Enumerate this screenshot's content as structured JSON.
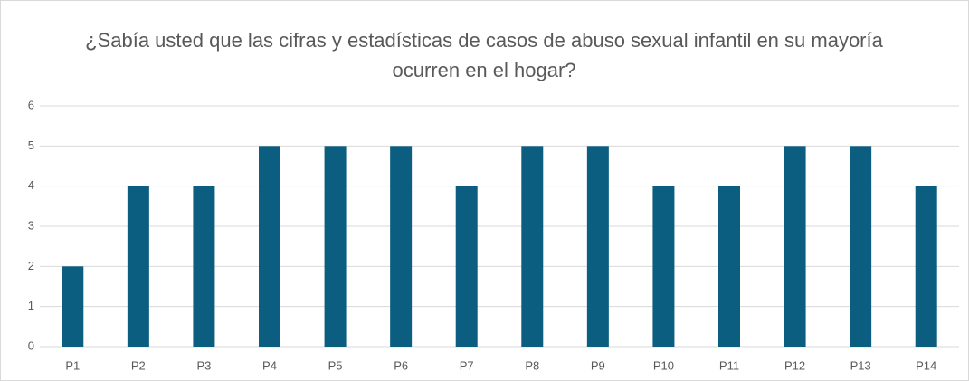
{
  "chart_data": {
    "type": "bar",
    "title": "¿Sabía usted que las cifras y estadísticas de casos de abuso sexual infantil en su mayoría ocurren en el hogar?",
    "categories": [
      "P1",
      "P2",
      "P3",
      "P4",
      "P5",
      "P6",
      "P7",
      "P8",
      "P9",
      "P10",
      "P11",
      "P12",
      "P13",
      "P14"
    ],
    "values": [
      2,
      4,
      4,
      5,
      5,
      5,
      4,
      5,
      5,
      4,
      4,
      5,
      5,
      4
    ],
    "color": "#0b5e80",
    "ylim": [
      0,
      6
    ],
    "yticks": [
      0,
      1,
      2,
      3,
      4,
      5,
      6
    ],
    "grid": true
  }
}
